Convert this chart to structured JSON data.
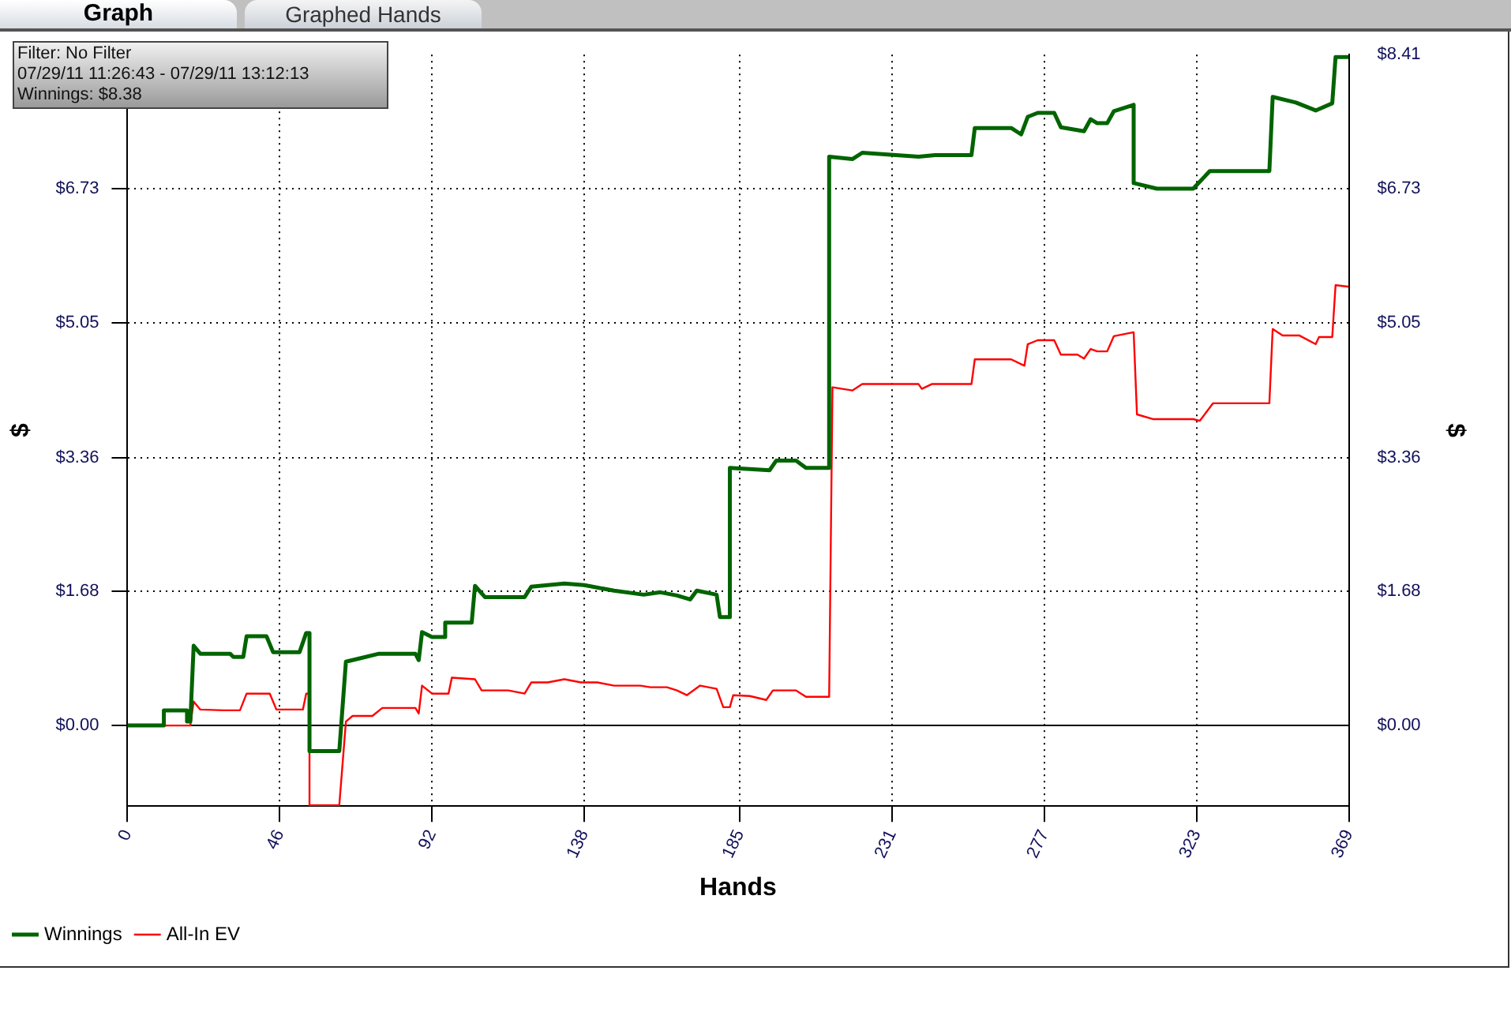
{
  "chart_data": {
    "type": "line",
    "xlabel": "Hands",
    "ylabel": "$",
    "y2label": "$",
    "annotations": [
      "Graph",
      "Graphed Hands",
      "Filter: No Filter",
      "07/29/11 11:26:43 - 07/29/11 13:12:13",
      "Winnings: $8.38"
    ],
    "xlim": [
      0,
      369
    ],
    "xticks": [
      0,
      46,
      92,
      138,
      185,
      231,
      277,
      323,
      369
    ],
    "ylim": [
      -1.01,
      8.41
    ],
    "yticks": [
      {
        "value": 0,
        "label": "$0.00"
      },
      {
        "value": 1.68,
        "label": "$1.68"
      },
      {
        "value": 3.36,
        "label": "$3.36"
      },
      {
        "value": 5.05,
        "label": "$5.05"
      },
      {
        "value": 6.73,
        "label": "$6.73"
      }
    ],
    "y2lim": [
      -1.01,
      8.41
    ],
    "y2ticks": [
      {
        "value": 0,
        "label": "$0.00"
      },
      {
        "value": 1.68,
        "label": "$1.68"
      },
      {
        "value": 3.36,
        "label": "$3.36"
      },
      {
        "value": 5.05,
        "label": "$5.05"
      },
      {
        "value": 6.73,
        "label": "$6.73"
      },
      {
        "value": 8.41,
        "label": "$8.41"
      }
    ],
    "grid": true,
    "legend": "bottom left",
    "marker": "none",
    "line_style": "solid",
    "ref_lines": [
      {
        "axis": "y",
        "value": 0,
        "color": "#000000"
      }
    ],
    "series": [
      {
        "name": "Winnings",
        "color": "#006400",
        "x": [
          0,
          11,
          11,
          18,
          18,
          19,
          20,
          22,
          31,
          32,
          35,
          36,
          42,
          44,
          52,
          54,
          55,
          55,
          64,
          66,
          70,
          76,
          87,
          88,
          89,
          92,
          96,
          96,
          104,
          105,
          108,
          120,
          122,
          132,
          138,
          147,
          156,
          161,
          166,
          170,
          172,
          178,
          179,
          182,
          182,
          194,
          196,
          202,
          205,
          212,
          212,
          219,
          222,
          239,
          244,
          255,
          256,
          267,
          270,
          272,
          275,
          280,
          282,
          289,
          291,
          293,
          296,
          298,
          304,
          304,
          311,
          322,
          327,
          345,
          346,
          353,
          359,
          364,
          365,
          369
        ],
        "values": [
          0,
          0,
          0.19,
          0.19,
          0.05,
          0.05,
          1.0,
          0.9,
          0.9,
          0.86,
          0.86,
          1.12,
          1.12,
          0.92,
          0.92,
          1.16,
          1.16,
          -0.32,
          -0.32,
          0.8,
          0.84,
          0.9,
          0.9,
          0.82,
          1.17,
          1.11,
          1.11,
          1.29,
          1.29,
          1.75,
          1.61,
          1.61,
          1.74,
          1.78,
          1.76,
          1.69,
          1.64,
          1.67,
          1.63,
          1.58,
          1.69,
          1.64,
          1.36,
          1.36,
          3.23,
          3.2,
          3.32,
          3.32,
          3.23,
          3.23,
          7.13,
          7.1,
          7.18,
          7.13,
          7.15,
          7.15,
          7.49,
          7.49,
          7.41,
          7.63,
          7.68,
          7.68,
          7.5,
          7.45,
          7.6,
          7.55,
          7.55,
          7.7,
          7.78,
          6.8,
          6.73,
          6.73,
          6.95,
          6.95,
          7.88,
          7.81,
          7.71,
          7.8,
          8.38,
          8.38
        ]
      },
      {
        "name": "All-In EV",
        "color": "#ff0000",
        "x": [
          0,
          19,
          20,
          22,
          29,
          34,
          36,
          43,
          45,
          53,
          54,
          55,
          55,
          64,
          66,
          68,
          74,
          77,
          87,
          88,
          89,
          92,
          97,
          98,
          105,
          107,
          115,
          120,
          122,
          127,
          132,
          137,
          142,
          147,
          155,
          158,
          163,
          166,
          169,
          173,
          178,
          180,
          182,
          183,
          188,
          193,
          195,
          202,
          205,
          212,
          213,
          219,
          222,
          239,
          240,
          243,
          255,
          256,
          267,
          271,
          272,
          275,
          280,
          282,
          287,
          289,
          291,
          293,
          296,
          298,
          304,
          305,
          310,
          322,
          324,
          328,
          345,
          346,
          349,
          354,
          359,
          360,
          364,
          365,
          369
        ],
        "values": [
          0,
          0,
          0.3,
          0.2,
          0.19,
          0.19,
          0.4,
          0.4,
          0.2,
          0.2,
          0.4,
          0.4,
          -1.0,
          -1.0,
          0.05,
          0.12,
          0.12,
          0.22,
          0.22,
          0.15,
          0.5,
          0.4,
          0.4,
          0.6,
          0.58,
          0.44,
          0.44,
          0.4,
          0.54,
          0.54,
          0.58,
          0.54,
          0.54,
          0.5,
          0.5,
          0.48,
          0.48,
          0.44,
          0.38,
          0.5,
          0.46,
          0.23,
          0.23,
          0.38,
          0.37,
          0.32,
          0.44,
          0.44,
          0.36,
          0.36,
          4.24,
          4.2,
          4.28,
          4.28,
          4.22,
          4.28,
          4.28,
          4.59,
          4.59,
          4.51,
          4.78,
          4.83,
          4.83,
          4.65,
          4.65,
          4.6,
          4.72,
          4.69,
          4.69,
          4.88,
          4.93,
          3.9,
          3.84,
          3.84,
          3.82,
          4.04,
          4.04,
          4.97,
          4.89,
          4.89,
          4.78,
          4.87,
          4.87,
          5.52,
          5.5
        ]
      }
    ]
  }
}
